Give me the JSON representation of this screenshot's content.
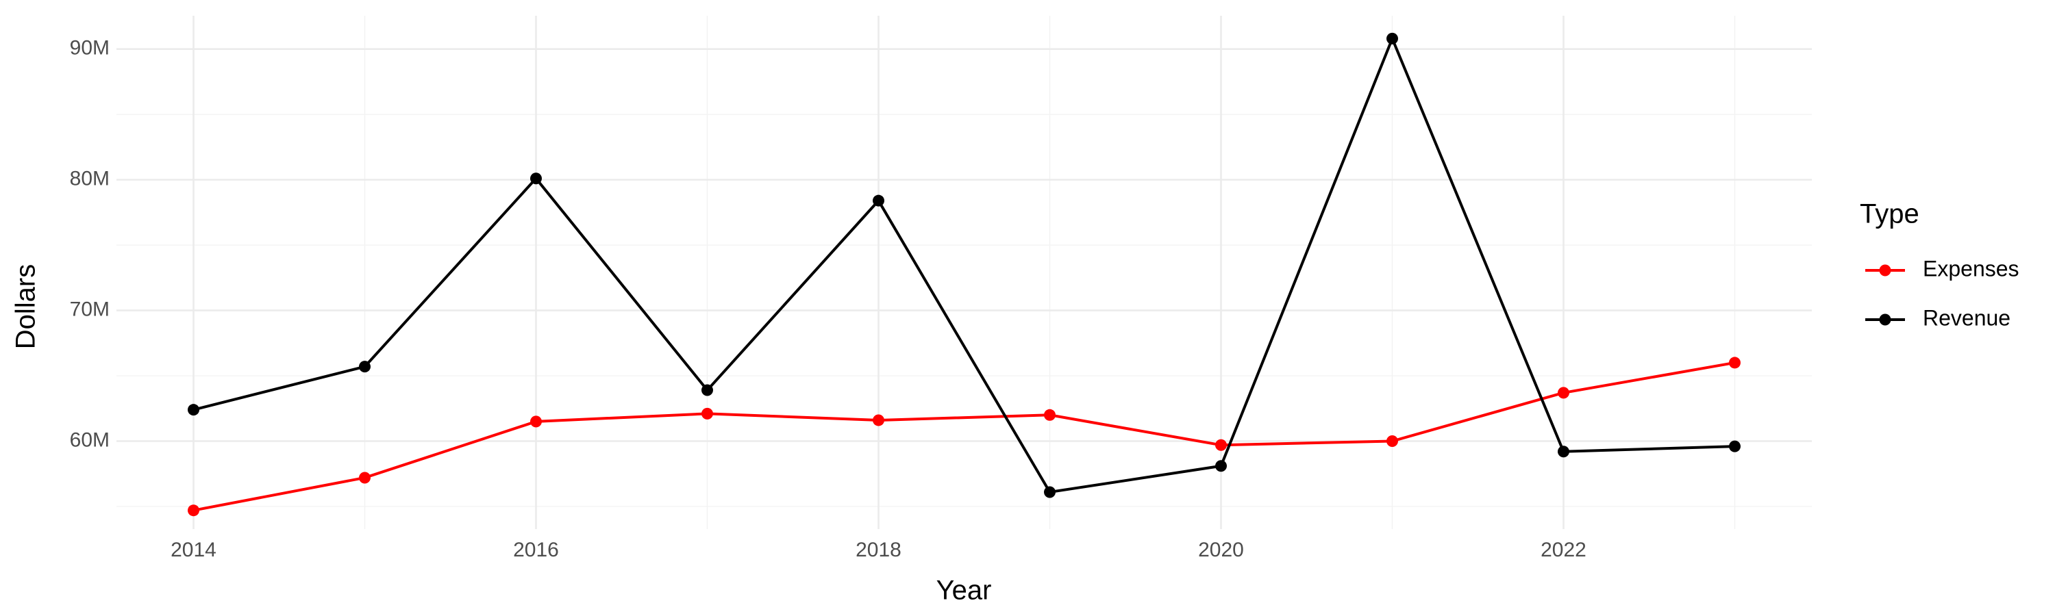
{
  "chart_data": {
    "type": "line",
    "x_label": "Year",
    "y_label": "Dollars",
    "x": [
      2014,
      2015,
      2016,
      2017,
      2018,
      2019,
      2020,
      2021,
      2022,
      2023
    ],
    "series": [
      {
        "name": "Expenses",
        "color": "#ff0000",
        "values": [
          54700000,
          57200000,
          61500000,
          62100000,
          61600000,
          62000000,
          59700000,
          60000000,
          63700000,
          66000000
        ]
      },
      {
        "name": "Revenue",
        "color": "#000000",
        "values": [
          62400000,
          65700000,
          80100000,
          63900000,
          78400000,
          56100000,
          58100000,
          90800000,
          59200000,
          59600000
        ]
      }
    ],
    "xlim": [
      2013.55,
      2023.45
    ],
    "xticks": [
      2014,
      2016,
      2018,
      2020,
      2022
    ],
    "ylim": [
      53270000,
      92550000
    ],
    "yticks": [
      {
        "value": 60000000,
        "label": "60M"
      },
      {
        "value": 70000000,
        "label": "70M"
      },
      {
        "value": 80000000,
        "label": "80M"
      },
      {
        "value": 90000000,
        "label": "90M"
      }
    ],
    "grid": true,
    "legend_title": "Type",
    "legend_position": "right"
  }
}
